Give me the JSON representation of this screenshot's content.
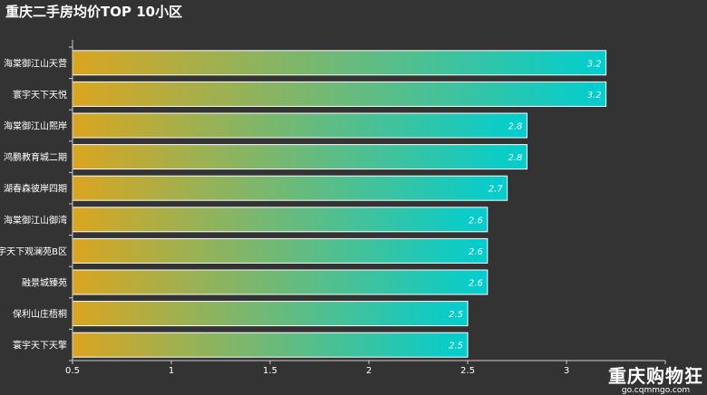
{
  "watermark": {
    "text": "重庆购物狂",
    "url": "go.cqmmgo.com"
  },
  "chart_data": {
    "type": "bar",
    "orientation": "horizontal",
    "title": "重庆二手房均价TOP 10小区",
    "categories": [
      "海棠御江山天营",
      "寰宇天下天悦",
      "海棠御江山熙岸",
      "鸿鹏教育城二期",
      "湖春森彼岸四期",
      "海棠御江山御湾",
      "宇天下观澜苑B区",
      "融景城臻苑",
      "保利山庄梧桐",
      "寰宇天下天擎"
    ],
    "values": [
      3.2,
      3.2,
      2.8,
      2.8,
      2.7,
      2.6,
      2.6,
      2.6,
      2.5,
      2.5
    ],
    "xlim": [
      0.5,
      3.5
    ],
    "xticks": [
      "0.5",
      "1",
      "1.5",
      "2",
      "2.5",
      "3"
    ],
    "grid": false,
    "bar_gradient": [
      "#daa520",
      "#00ced1"
    ]
  }
}
